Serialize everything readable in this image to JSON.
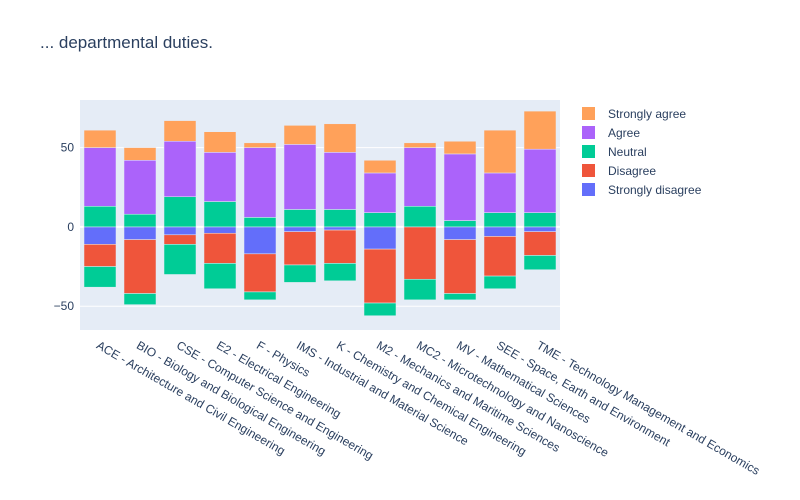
{
  "chart_data": {
    "type": "bar",
    "barmode": "relative",
    "title": "... departmental duties.",
    "xlabel": "",
    "ylabel": "",
    "categories": [
      "ACE - Architecture and Civil Engineering",
      "BIO - Biology and Biological Engineering",
      "CSE - Computer Science and Engineering",
      "E2 - Electrical Engineering",
      "F - Physics",
      "IMS - Industrial and Material Science",
      "K - Chemistry and Chemical Engineering",
      "M2 - Mechanics and Maritime Sciences",
      "MC2 - Microtechnology and Nanoscience",
      "MV - Mathematical Sciences",
      "SEE - Space, Earth and Environment",
      "TME - Technology Management and Economics"
    ],
    "ylim": [
      -65,
      80
    ],
    "yticks": [
      -50,
      0,
      50
    ],
    "grid": true,
    "legend_position": "right",
    "series": [
      {
        "name": "Strongly disagree",
        "color": "#636efa",
        "values": [
          -11,
          -8,
          -5,
          -4,
          -17,
          -3,
          -2,
          -14,
          0,
          -8,
          -6,
          -3
        ]
      },
      {
        "name": "Disagree",
        "color": "#ef553b",
        "values": [
          -14,
          -34,
          -6,
          -19,
          -24,
          -21,
          -21,
          -34,
          -33,
          -34,
          -25,
          -15
        ]
      },
      {
        "name": "Neutral",
        "color": "#00cc96",
        "values": [
          -13,
          -7,
          -19,
          -16,
          -5,
          -11,
          -11,
          -8,
          -13,
          -4,
          -8,
          -9
        ]
      },
      {
        "name": "Neutral",
        "color": "#00cc96",
        "values": [
          13,
          8,
          19,
          16,
          6,
          11,
          11,
          9,
          13,
          4,
          9,
          9
        ]
      },
      {
        "name": "Agree",
        "color": "#ab63fa",
        "values": [
          37,
          34,
          35,
          31,
          44,
          41,
          36,
          25,
          37,
          42,
          25,
          40
        ]
      },
      {
        "name": "Strongly agree",
        "color": "#ffa15a",
        "values": [
          11,
          8,
          13,
          13,
          3,
          12,
          18,
          8,
          3,
          8,
          27,
          24
        ]
      }
    ],
    "legend": [
      {
        "name": "Strongly agree",
        "color": "#ffa15a"
      },
      {
        "name": "Agree",
        "color": "#ab63fa"
      },
      {
        "name": "Neutral",
        "color": "#00cc96"
      },
      {
        "name": "Disagree",
        "color": "#ef553b"
      },
      {
        "name": "Strongly disagree",
        "color": "#636efa"
      }
    ],
    "plot_bg": "#e5ecf6",
    "grid_color": "#ffffff"
  }
}
